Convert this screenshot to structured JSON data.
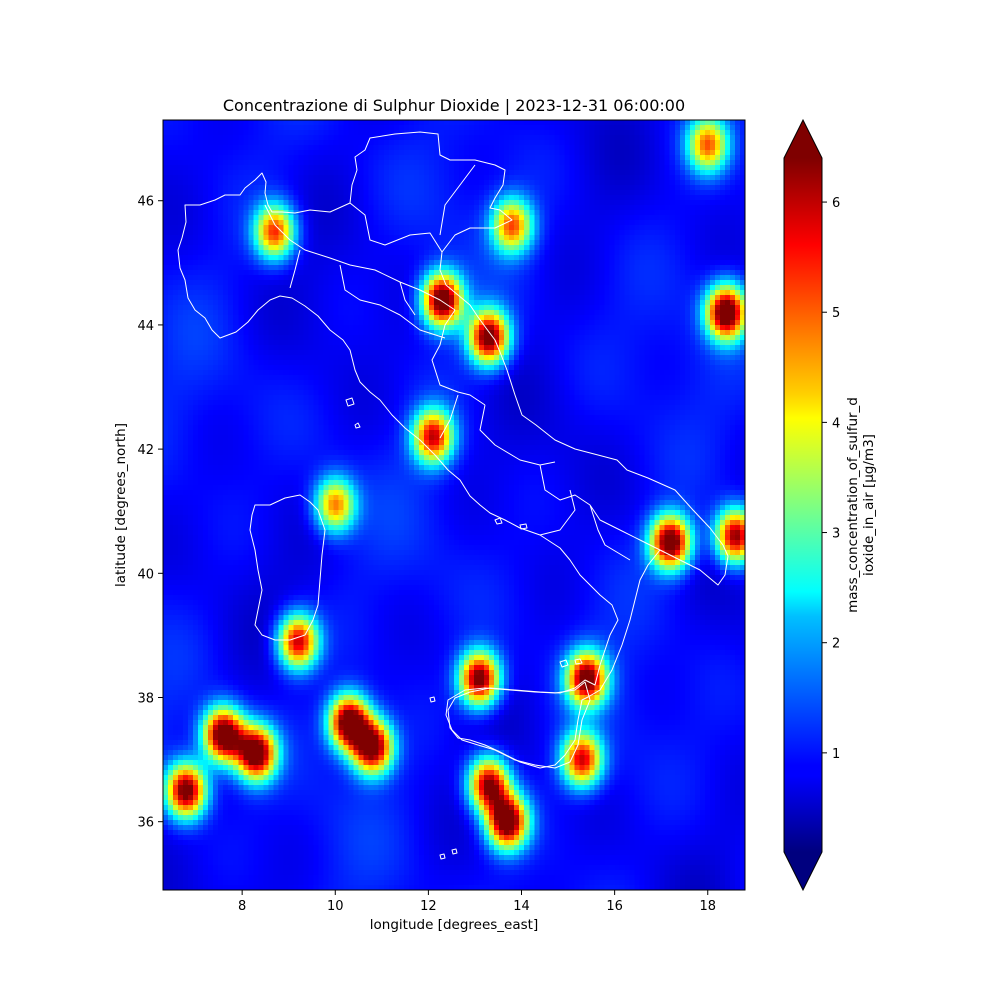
{
  "chart_data": {
    "type": "heatmap",
    "title": "Concentrazione di Sulphur Dioxide | 2023-12-31 06:00:00",
    "xlabel": "longitude [degrees_east]",
    "ylabel": "latitude [degrees_north]",
    "xlim": [
      6.3,
      18.8
    ],
    "ylim": [
      34.9,
      47.3
    ],
    "xticks": [
      8,
      10,
      12,
      14,
      16,
      18
    ],
    "yticks": [
      36,
      38,
      40,
      42,
      44,
      46
    ],
    "colorbar": {
      "label_line1": "mass_concentration_of_sulfur_d",
      "label_line2": "ioxide_in_air [µg/m3]",
      "ticks": [
        1,
        2,
        3,
        4,
        5,
        6
      ],
      "range": [
        0.1,
        6.4
      ],
      "colormap": "jet",
      "extend": "both"
    },
    "hotspots": [
      {
        "lon": 7.6,
        "lat": 37.4,
        "value": 6.4
      },
      {
        "lon": 8.3,
        "lat": 37.1,
        "value": 6.2
      },
      {
        "lon": 6.8,
        "lat": 36.5,
        "value": 6.0
      },
      {
        "lon": 10.3,
        "lat": 37.6,
        "value": 6.4
      },
      {
        "lon": 10.8,
        "lat": 37.2,
        "value": 6.0
      },
      {
        "lon": 13.7,
        "lat": 36.0,
        "value": 6.3
      },
      {
        "lon": 13.3,
        "lat": 36.6,
        "value": 5.6
      },
      {
        "lon": 12.3,
        "lat": 44.4,
        "value": 6.4
      },
      {
        "lon": 13.3,
        "lat": 43.8,
        "value": 6.0
      },
      {
        "lon": 18.4,
        "lat": 44.2,
        "value": 6.4
      },
      {
        "lon": 13.1,
        "lat": 38.3,
        "value": 6.0
      },
      {
        "lon": 15.4,
        "lat": 38.3,
        "value": 5.8
      },
      {
        "lon": 17.2,
        "lat": 40.5,
        "value": 6.2
      },
      {
        "lon": 18.6,
        "lat": 40.6,
        "value": 5.6
      },
      {
        "lon": 12.1,
        "lat": 42.2,
        "value": 5.0
      },
      {
        "lon": 9.2,
        "lat": 38.9,
        "value": 5.2
      },
      {
        "lon": 15.3,
        "lat": 37.0,
        "value": 5.0
      },
      {
        "lon": 10.0,
        "lat": 41.1,
        "value": 4.0
      },
      {
        "lon": 8.7,
        "lat": 45.5,
        "value": 4.5
      },
      {
        "lon": 13.8,
        "lat": 45.6,
        "value": 4.2
      },
      {
        "lon": 18.0,
        "lat": 46.9,
        "value": 4.0
      }
    ],
    "grid": false
  }
}
